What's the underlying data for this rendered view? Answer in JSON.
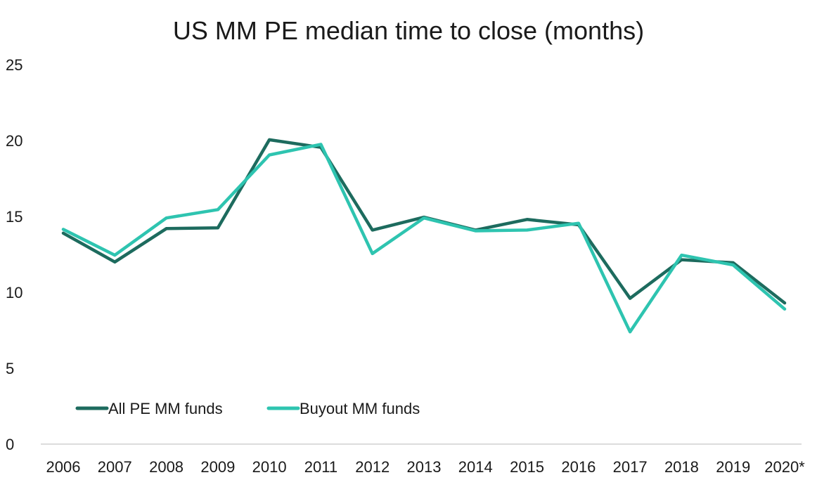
{
  "chart_data": {
    "type": "line",
    "title": "US MM PE median time to close (months)",
    "xlabel": "",
    "ylabel": "",
    "categories": [
      "2006",
      "2007",
      "2008",
      "2009",
      "2010",
      "2011",
      "2012",
      "2013",
      "2014",
      "2015",
      "2016",
      "2017",
      "2018",
      "2019",
      "2020*"
    ],
    "ylim": [
      0,
      25
    ],
    "yticks": [
      "0",
      "5",
      "10",
      "15",
      "20",
      "25"
    ],
    "grid": false,
    "legend_position": "bottom-left",
    "series": [
      {
        "name": "All PE MM funds",
        "color": "#1d6b5e",
        "values": [
          13.9,
          12.0,
          14.2,
          14.25,
          20.05,
          19.55,
          14.1,
          14.95,
          14.1,
          14.8,
          14.45,
          9.6,
          12.15,
          11.95,
          9.3
        ]
      },
      {
        "name": "Buyout MM funds",
        "color": "#2ec4b0",
        "values": [
          14.15,
          12.45,
          14.9,
          15.45,
          19.05,
          19.75,
          12.55,
          14.9,
          14.05,
          14.1,
          14.55,
          7.4,
          12.45,
          11.8,
          8.9
        ]
      }
    ]
  }
}
